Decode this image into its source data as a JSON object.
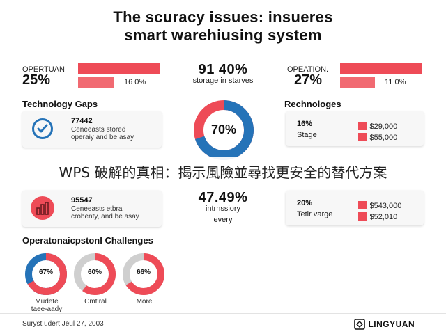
{
  "header": {
    "title_line1": "The scuracy issues: insueres",
    "title_line2": "smart warehiusing system"
  },
  "top": {
    "left": {
      "label": "OPERTUAN",
      "value": "25%",
      "sub_value": "16 0%"
    },
    "center": {
      "value": "91 40%",
      "text": "storage in starves"
    },
    "right": {
      "label": "OPEATION.",
      "value": "27%",
      "sub_value": "11 0%"
    }
  },
  "tech_gaps": {
    "heading": "Technology Gaps",
    "card1": {
      "number": "77442",
      "line1": "Ceneeasts stored",
      "line2": "operaiy and be asay",
      "icon": "checkmark-icon"
    },
    "donut": {
      "value": "70%",
      "fraction": 0.7,
      "colors": {
        "main": "#2573b8",
        "rest": "#ee4b57"
      }
    },
    "card2": {
      "number": "95547",
      "line1": "Ceneeasts etbral",
      "line2": "crobenty, and be asay",
      "icon": "bar-chart-icon"
    },
    "center_stat": {
      "value": "47.49%",
      "line1": "intrnssiory",
      "line2": "every"
    }
  },
  "technologies": {
    "heading": "Rechnologes",
    "card1": {
      "left_value": "16%",
      "left_label": "Stage",
      "rows": [
        {
          "amount": "$29,000"
        },
        {
          "amount": "$55,000"
        }
      ]
    },
    "card2": {
      "left_value": "20%",
      "left_label": "Tetir varge",
      "rows": [
        {
          "amount": "$543,000"
        },
        {
          "amount": "$52,010"
        }
      ]
    }
  },
  "overlay": {
    "text": "WPS 破解的真相：揭示風險並尋找更安全的替代方案"
  },
  "challenges": {
    "heading": "Operatonaicpstonl Challenges",
    "items": [
      {
        "value": "67%",
        "label1": "Mudete",
        "label2": "taee-aady",
        "fraction": 0.67,
        "main": "#ee4b57",
        "accent": "#2573b8"
      },
      {
        "value": "60%",
        "label1": "Cmtiral",
        "label2": "",
        "fraction": 0.6,
        "main": "#ee4b57",
        "accent": "#cfcfcf"
      },
      {
        "value": "66%",
        "label1": "More",
        "label2": "",
        "fraction": 0.66,
        "main": "#ee4b57",
        "accent": "#cfcfcf"
      }
    ]
  },
  "footer": {
    "left": "Suryst udert Jeul 27, 2003",
    "brand": "LINGYUAN"
  },
  "colors": {
    "red": "#ee4b57",
    "blue": "#2573b8",
    "grey": "#cfcfcf"
  }
}
